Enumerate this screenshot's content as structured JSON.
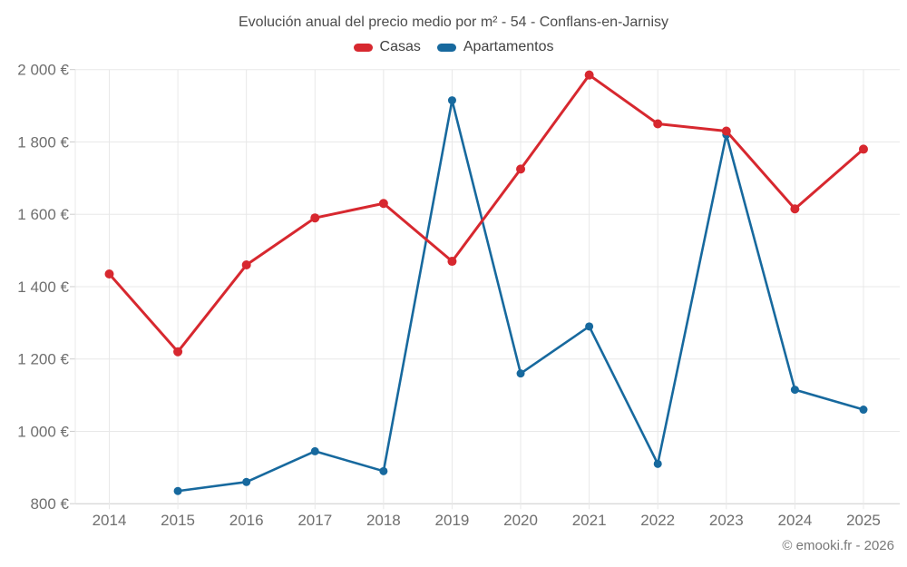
{
  "title": "Evolución anual del precio medio por m² - 54 - Conflans-en-Jarnisy",
  "footer": "© emooki.fr - 2026",
  "legend": [
    {
      "label": "Casas",
      "color": "#d7282f"
    },
    {
      "label": "Apartamentos",
      "color": "#17699e"
    }
  ],
  "chart_data": {
    "type": "line",
    "title": "Evolución anual del precio medio por m² - 54 - Conflans-en-Jarnisy",
    "xlabel": "",
    "ylabel": "",
    "x": [
      2014,
      2015,
      2016,
      2017,
      2018,
      2019,
      2020,
      2021,
      2022,
      2023,
      2024,
      2025
    ],
    "series": [
      {
        "name": "Casas",
        "color": "#d7282f",
        "values": [
          1435,
          1220,
          1460,
          1590,
          1630,
          1470,
          1725,
          1985,
          1850,
          1830,
          1615,
          1780
        ]
      },
      {
        "name": "Apartamentos",
        "color": "#17699e",
        "values": [
          null,
          835,
          860,
          945,
          890,
          1915,
          1160,
          1290,
          910,
          1820,
          1115,
          1060
        ]
      }
    ],
    "ylim": [
      800,
      2000
    ],
    "grid": true,
    "legend_position": "top",
    "y_ticks": [
      {
        "value": 800,
        "label": "800 €"
      },
      {
        "value": 1000,
        "label": "1 000 €"
      },
      {
        "value": 1200,
        "label": "1 200 €"
      },
      {
        "value": 1400,
        "label": "1 400 €"
      },
      {
        "value": 1600,
        "label": "1 600 €"
      },
      {
        "value": 1800,
        "label": "1 800 €"
      },
      {
        "value": 2000,
        "label": "2 000 €"
      }
    ]
  }
}
